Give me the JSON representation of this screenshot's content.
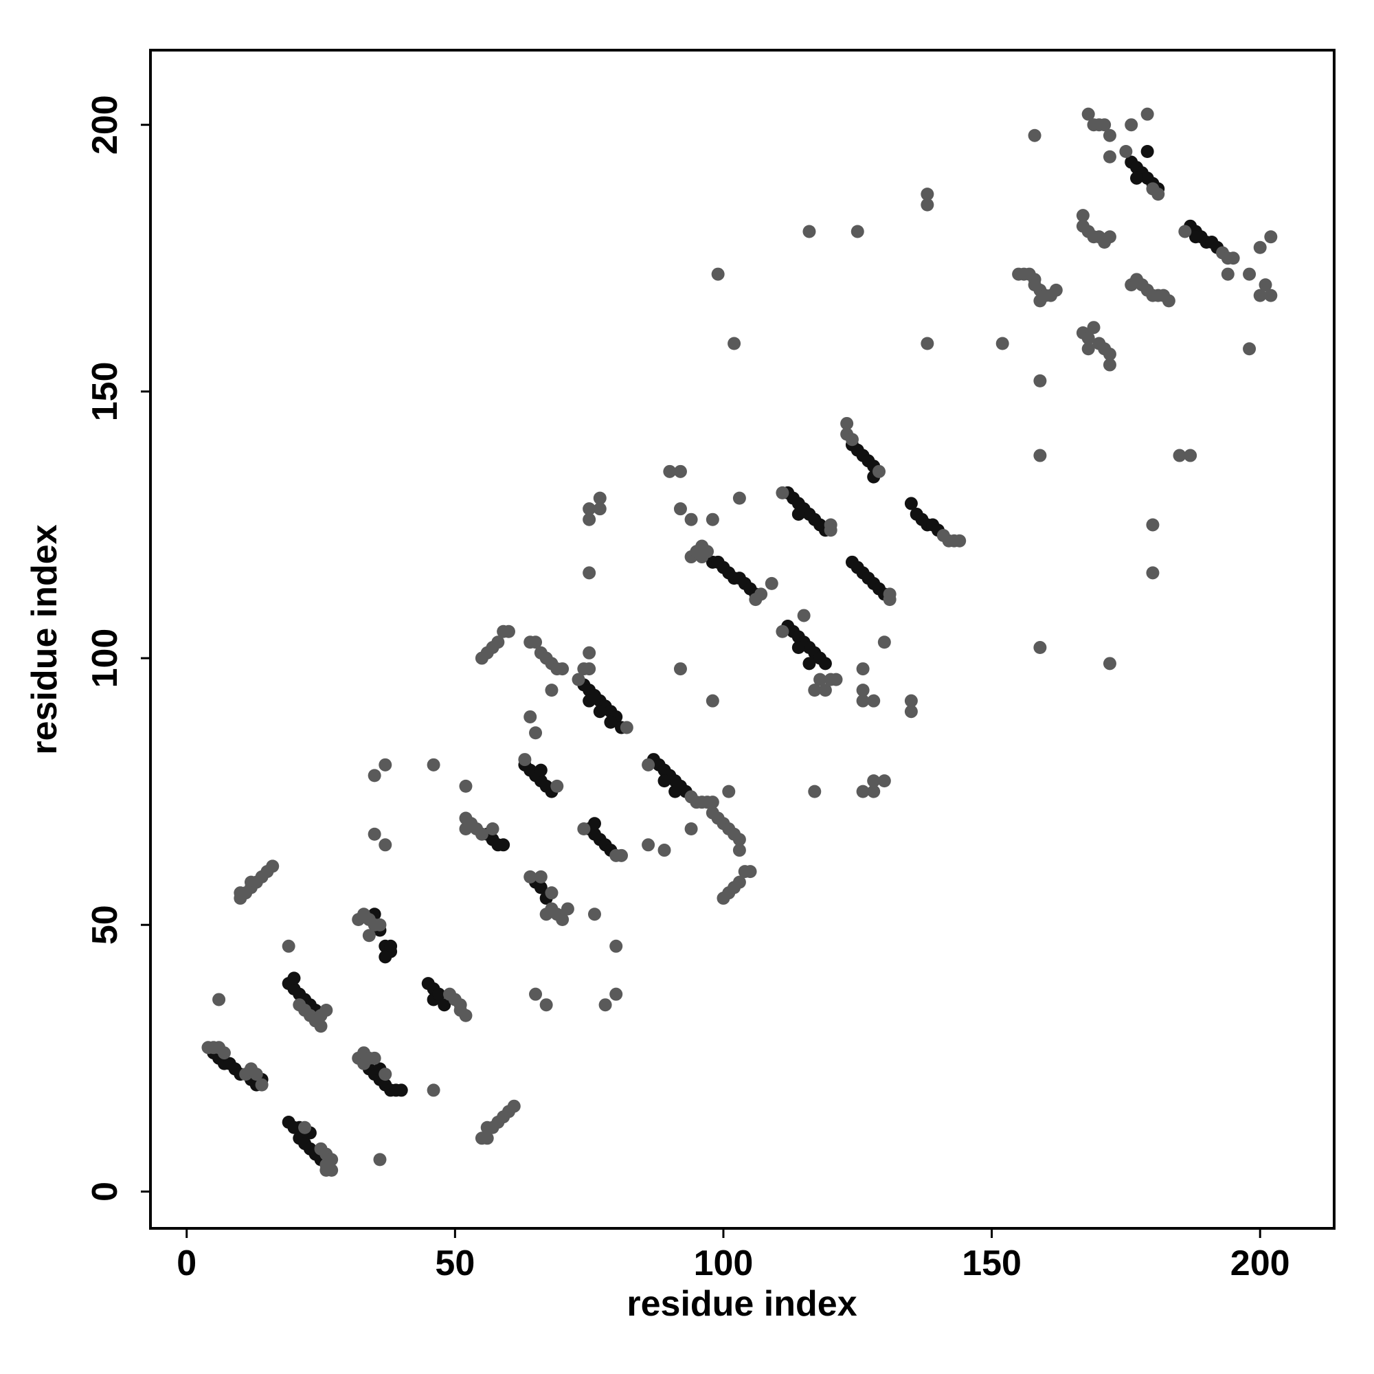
{
  "chart_data": {
    "type": "scatter",
    "xlabel": "residue index",
    "ylabel": "residue index",
    "xlim": [
      -6.75,
      213.8
    ],
    "ylim": [
      -6.9,
      214
    ],
    "xticks": [
      0,
      50,
      100,
      150,
      200
    ],
    "yticks": [
      0,
      50,
      100,
      150,
      200
    ],
    "grid": false,
    "series": [
      {
        "color": "#111111",
        "x": [
          5,
          6,
          7,
          8,
          9,
          10,
          12,
          13,
          14,
          19,
          20,
          21,
          21,
          22,
          23,
          24,
          25,
          23,
          19,
          20,
          21,
          22,
          23,
          24,
          20,
          34,
          35,
          36,
          37,
          38,
          39,
          40,
          36,
          35,
          36,
          37,
          38,
          38,
          37,
          45,
          46,
          46,
          47,
          48,
          56,
          57,
          58,
          59,
          63,
          64,
          65,
          66,
          67,
          68,
          66,
          65,
          66,
          67,
          75,
          76,
          77,
          78,
          79,
          76,
          74,
          75,
          76,
          77,
          78,
          79,
          80,
          81,
          79,
          75,
          77,
          87,
          88,
          89,
          90,
          91,
          92,
          93,
          89,
          91,
          98,
          99,
          100,
          101,
          102,
          103,
          104,
          105,
          106,
          112,
          113,
          114,
          115,
          116,
          117,
          118,
          119,
          114,
          112,
          113,
          114,
          115,
          116,
          117,
          118,
          119,
          114,
          116,
          124,
          125,
          126,
          127,
          128,
          128,
          124,
          125,
          126,
          127,
          128,
          129,
          130,
          135,
          136,
          137,
          138,
          139,
          140,
          176,
          177,
          178,
          179,
          180,
          181,
          179,
          177,
          187,
          188,
          189,
          190,
          191,
          192,
          188
        ],
        "values": [
          26,
          25,
          24,
          24,
          23,
          22,
          21,
          20,
          21,
          13,
          12,
          12,
          10,
          9,
          8,
          7,
          6,
          11,
          39,
          38,
          37,
          36,
          35,
          34,
          40,
          23,
          22,
          21,
          20,
          19,
          19,
          19,
          23,
          52,
          49,
          46,
          45,
          46,
          44,
          39,
          38,
          36,
          37,
          35,
          67,
          66,
          65,
          65,
          80,
          79,
          78,
          77,
          76,
          75,
          79,
          58,
          57,
          55,
          68,
          67,
          66,
          65,
          64,
          69,
          95,
          94,
          93,
          92,
          91,
          90,
          89,
          87,
          88,
          92,
          90,
          81,
          80,
          79,
          78,
          77,
          76,
          75,
          77,
          75,
          118,
          118,
          117,
          116,
          115,
          115,
          114,
          113,
          112,
          131,
          130,
          129,
          128,
          127,
          126,
          125,
          124,
          127,
          106,
          105,
          104,
          103,
          102,
          101,
          100,
          99,
          102,
          99,
          140,
          139,
          138,
          137,
          136,
          134,
          118,
          117,
          116,
          115,
          114,
          113,
          112,
          129,
          127,
          126,
          125,
          125,
          124,
          193,
          192,
          191,
          190,
          189,
          188,
          195,
          190,
          181,
          180,
          179,
          178,
          178,
          177,
          179
        ]
      },
      {
        "color": "#5a5a5a",
        "x": [
          4,
          5,
          6,
          7,
          11,
          12,
          13,
          14,
          6,
          22,
          25,
          26,
          26,
          27,
          26,
          27,
          21,
          23,
          24,
          25,
          26,
          25,
          19,
          22,
          10,
          10,
          11,
          12,
          12,
          13,
          14,
          15,
          16,
          32,
          33,
          33,
          34,
          35,
          37,
          36,
          32,
          33,
          34,
          35,
          36,
          34,
          35,
          37,
          35,
          37,
          49,
          50,
          51,
          51,
          52,
          46,
          46,
          55,
          56,
          56,
          57,
          58,
          59,
          60,
          61,
          52,
          53,
          52,
          54,
          55,
          57,
          52,
          55,
          56,
          57,
          58,
          59,
          60,
          64,
          65,
          66,
          67,
          68,
          69,
          70,
          68,
          63,
          69,
          64,
          65,
          64,
          66,
          67,
          68,
          69,
          70,
          71,
          68,
          65,
          67,
          74,
          80,
          81,
          76,
          80,
          78,
          80,
          74,
          75,
          75,
          75,
          75,
          75,
          77,
          77,
          73,
          82,
          86,
          94,
          95,
          96,
          97,
          86,
          89,
          94,
          101,
          98,
          98,
          99,
          100,
          101,
          102,
          103,
          103,
          100,
          101,
          102,
          103,
          104,
          105,
          98,
          92,
          94,
          95,
          96,
          97,
          96,
          107,
          106,
          109,
          90,
          92,
          92,
          94,
          98,
          103,
          99,
          102,
          111,
          120,
          120,
          111,
          115,
          120,
          121,
          118,
          117,
          119,
          117,
          116,
          125,
          123,
          123,
          124,
          129,
          131,
          131,
          126,
          126,
          126,
          128,
          126,
          128,
          128,
          130,
          130,
          141,
          142,
          143,
          144,
          135,
          135,
          138,
          138,
          138,
          152,
          155,
          156,
          157,
          158,
          158,
          159,
          160,
          161,
          162,
          159,
          158,
          159,
          159,
          159,
          167,
          167,
          168,
          169,
          170,
          171,
          172,
          168,
          169,
          170,
          171,
          172,
          172,
          167,
          168,
          169,
          170,
          171,
          172,
          172,
          168,
          172,
          175,
          176,
          179,
          180,
          181,
          176,
          177,
          178,
          179,
          180,
          181,
          182,
          183,
          180,
          180,
          185,
          187,
          186,
          193,
          194,
          195,
          194,
          198,
          198,
          200,
          202,
          200,
          202,
          201
        ],
        "values": [
          27,
          27,
          27,
          26,
          22,
          23,
          22,
          20,
          36,
          12,
          8,
          7,
          5,
          4,
          4,
          6,
          35,
          33,
          32,
          33,
          34,
          31,
          46,
          34,
          55,
          56,
          56,
          57,
          58,
          58,
          59,
          60,
          61,
          25,
          24,
          26,
          25,
          25,
          22,
          6,
          51,
          52,
          51,
          50,
          50,
          48,
          67,
          65,
          78,
          80,
          37,
          36,
          34,
          35,
          33,
          19,
          80,
          10,
          10,
          12,
          12,
          13,
          14,
          15,
          16,
          70,
          69,
          68,
          68,
          67,
          68,
          76,
          100,
          101,
          102,
          103,
          105,
          105,
          103,
          103,
          101,
          100,
          99,
          98,
          98,
          94,
          81,
          76,
          89,
          86,
          59,
          59,
          52,
          53,
          52,
          51,
          53,
          56,
          37,
          35,
          68,
          63,
          63,
          52,
          46,
          35,
          37,
          98,
          98,
          101,
          116,
          126,
          128,
          128,
          130,
          96,
          87,
          80,
          74,
          73,
          73,
          73,
          65,
          64,
          68,
          75,
          73,
          71,
          70,
          69,
          68,
          67,
          66,
          64,
          55,
          56,
          57,
          58,
          60,
          60,
          92,
          98,
          119,
          120,
          121,
          120,
          119,
          112,
          111,
          114,
          135,
          135,
          128,
          126,
          126,
          130,
          172,
          159,
          131,
          125,
          124,
          105,
          108,
          96,
          96,
          96,
          94,
          94,
          75,
          180,
          180,
          144,
          142,
          141,
          135,
          111,
          112,
          98,
          94,
          92,
          92,
          75,
          75,
          77,
          77,
          103,
          123,
          122,
          122,
          122,
          92,
          90,
          187,
          185,
          159,
          159,
          172,
          172,
          172,
          171,
          170,
          169,
          168,
          168,
          169,
          167,
          198,
          152,
          138,
          102,
          183,
          181,
          180,
          179,
          179,
          178,
          179,
          202,
          200,
          200,
          200,
          198,
          194,
          161,
          160,
          162,
          159,
          158,
          157,
          155,
          158,
          99,
          195,
          200,
          202,
          188,
          187,
          170,
          171,
          170,
          169,
          168,
          168,
          168,
          167,
          125,
          116,
          138,
          138,
          180,
          176,
          175,
          175,
          172,
          172,
          158,
          177,
          179,
          168,
          168,
          170
        ]
      }
    ]
  }
}
